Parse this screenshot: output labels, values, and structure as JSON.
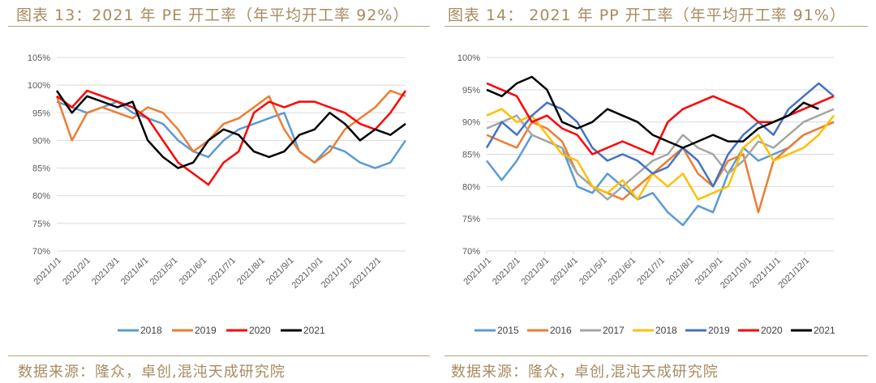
{
  "charts": [
    {
      "title": "图表 13：2021 年 PE 开工率（年平均开工率 92%）",
      "source": "数据来源：隆众，卓创,混沌天成研究院"
    },
    {
      "title": "图表 14： 2021 年 PP 开工率（年平均开工率 91%）",
      "source": "数据来源：隆众，卓创,混沌天成研究院"
    }
  ],
  "chart_data": [
    {
      "type": "line",
      "title": "2021 年 PE 开工率（年平均开工率 92%）",
      "ylim": [
        70,
        105
      ],
      "yticks": [
        "70%",
        "75%",
        "80%",
        "85%",
        "90%",
        "95%",
        "100%",
        "105%"
      ],
      "xticks": [
        "2021/1/1",
        "2021/2/1",
        "2021/3/1",
        "2021/4/1",
        "2021/5/1",
        "2021/6/1",
        "2021/7/1",
        "2021/8/1",
        "2021/9/1",
        "2021/10/1",
        "2021/11/1",
        "2021/12/1"
      ],
      "grid": true,
      "legend": "bottom",
      "series": [
        {
          "name": "2018",
          "color": "#5b9bd5",
          "values": [
            97,
            96,
            95,
            96,
            97,
            95,
            94,
            93,
            90,
            88,
            87,
            90,
            92,
            93,
            94,
            95,
            88,
            86,
            89,
            88,
            86,
            85,
            86,
            90
          ]
        },
        {
          "name": "2019",
          "color": "#ed7d31",
          "values": [
            98,
            90,
            95,
            96,
            95,
            94,
            96,
            95,
            92,
            88,
            90,
            93,
            94,
            96,
            98,
            92,
            88,
            86,
            88,
            92,
            94,
            96,
            99,
            98
          ]
        },
        {
          "name": "2020",
          "color": "#ff0000",
          "values": [
            98,
            96,
            99,
            98,
            97,
            96,
            94,
            90,
            86,
            84,
            82,
            86,
            88,
            95,
            97,
            96,
            97,
            97,
            96,
            95,
            93,
            92,
            95,
            99
          ]
        },
        {
          "name": "2021",
          "color": "#000000",
          "values": [
            99,
            95,
            98,
            97,
            96,
            97,
            90,
            87,
            85,
            86,
            90,
            92,
            91,
            88,
            87,
            88,
            91,
            92,
            95,
            93,
            90,
            92,
            91,
            93
          ]
        }
      ]
    },
    {
      "type": "line",
      "title": "2021 年 PP 开工率（年平均开工率 91%）",
      "ylim": [
        70,
        100
      ],
      "yticks": [
        "70%",
        "75%",
        "80%",
        "85%",
        "90%",
        "95%",
        "100%"
      ],
      "xticks": [
        "2021/1/1",
        "2021/2/1",
        "2021/3/1",
        "2021/4/1",
        "2021/5/1",
        "2021/6/1",
        "2021/7/1",
        "2021/8/1",
        "2021/9/1",
        "2021/10/1",
        "2021/11/1",
        "2021/12/1"
      ],
      "grid": true,
      "legend": "bottom",
      "series": [
        {
          "name": "2015",
          "color": "#5b9bd5",
          "values": [
            84,
            81,
            84,
            88,
            87,
            86,
            80,
            79,
            82,
            80,
            78,
            79,
            76,
            74,
            77,
            76,
            82,
            86,
            84,
            85,
            86,
            88,
            89,
            90
          ]
        },
        {
          "name": "2016",
          "color": "#ed7d31",
          "values": [
            88,
            87,
            86,
            90,
            89,
            87,
            82,
            80,
            79,
            78,
            80,
            82,
            84,
            86,
            82,
            80,
            84,
            85,
            76,
            84,
            86,
            88,
            89,
            90
          ]
        },
        {
          "name": "2017",
          "color": "#a5a5a5",
          "values": [
            89,
            90,
            91,
            88,
            87,
            86,
            82,
            80,
            78,
            80,
            82,
            84,
            85,
            88,
            86,
            85,
            82,
            84,
            87,
            86,
            88,
            90,
            91,
            92
          ]
        },
        {
          "name": "2018",
          "color": "#ffc000",
          "values": [
            91,
            92,
            90,
            91,
            88,
            85,
            84,
            80,
            79,
            81,
            78,
            82,
            80,
            82,
            78,
            79,
            80,
            86,
            88,
            84,
            85,
            86,
            88,
            91
          ]
        },
        {
          "name": "2019",
          "color": "#4472c4",
          "values": [
            86,
            90,
            88,
            91,
            93,
            92,
            90,
            86,
            84,
            85,
            84,
            82,
            83,
            86,
            84,
            80,
            85,
            88,
            90,
            88,
            92,
            94,
            96,
            94
          ]
        },
        {
          "name": "2020",
          "color": "#ff0000",
          "values": [
            96,
            95,
            94,
            90,
            91,
            89,
            88,
            85,
            86,
            87,
            86,
            85,
            90,
            92,
            93,
            94,
            93,
            92,
            90,
            90,
            91,
            92,
            93,
            94
          ]
        },
        {
          "name": "2021",
          "color": "#000000",
          "values": [
            95,
            94,
            96,
            97,
            95,
            90,
            89,
            90,
            92,
            91,
            90,
            88,
            87,
            86,
            87,
            88,
            87,
            87,
            89,
            90,
            91,
            93,
            92
          ]
        }
      ]
    }
  ]
}
